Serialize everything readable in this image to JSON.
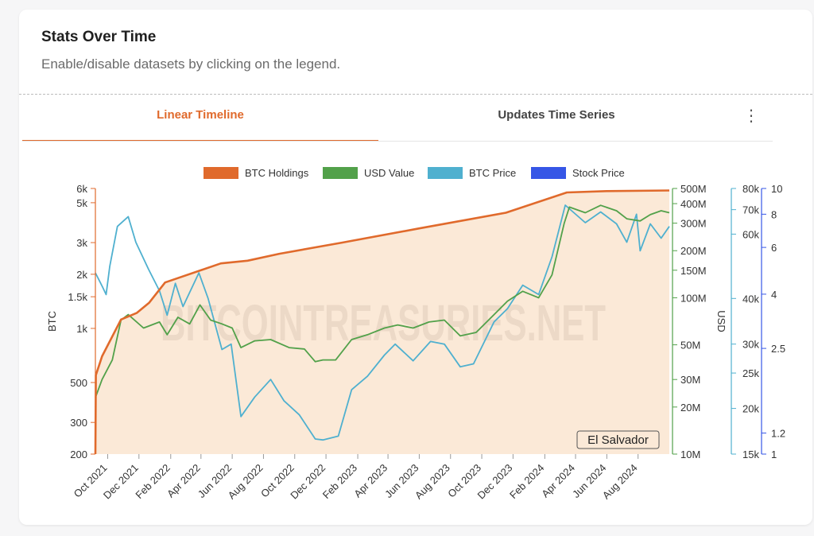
{
  "header": {
    "title": "Stats Over Time",
    "subtitle": "Enable/disable datasets by clicking on the legend."
  },
  "tabs": [
    {
      "label": "Linear Timeline",
      "active": true
    },
    {
      "label": "Updates Time Series",
      "active": false
    }
  ],
  "menu": {
    "icon": "kebab-menu-icon",
    "glyph": "⋮"
  },
  "watermark": "BITCOINTREASURIES.NET",
  "colors": {
    "btc_holdings": "#e06a2c",
    "holdings_fill": "#fbe9d7",
    "usd_value": "#52a14a",
    "btc_price": "#4fb0cf",
    "stock_price": "#3656e6",
    "accent": "#e06a2c"
  },
  "chart_data": {
    "type": "line",
    "legend_position": "top",
    "annotation": "El Salvador",
    "x_ticks": [
      "Oct 2021",
      "Dec 2021",
      "Feb 2022",
      "Apr 2022",
      "Jun 2022",
      "Aug 2022",
      "Oct 2022",
      "Dec 2022",
      "Feb 2023",
      "Apr 2023",
      "Jun 2023",
      "Aug 2023",
      "Oct 2023",
      "Dec 2023",
      "Feb 2024",
      "Apr 2024",
      "Jun 2024",
      "Aug 2024"
    ],
    "x_range": [
      "2021-09-07",
      "2024-10-01"
    ],
    "axes": {
      "btc": {
        "label": "BTC",
        "scale": "log",
        "range": [
          200,
          6000
        ],
        "ticks": [
          "6k",
          "5k",
          "3k",
          "2k",
          "1.5k",
          "1k",
          "500",
          "300",
          "200"
        ],
        "tick_values": [
          6000,
          5000,
          3000,
          2000,
          1500,
          1000,
          500,
          300,
          200
        ]
      },
      "usd": {
        "label": "USD",
        "scale": "log",
        "range": [
          10000000,
          500000000
        ],
        "ticks": [
          "500M",
          "400M",
          "300M",
          "200M",
          "150M",
          "100M",
          "50M",
          "30M",
          "20M",
          "10M"
        ],
        "tick_values": [
          500000000,
          400000000,
          300000000,
          200000000,
          150000000,
          100000000,
          50000000,
          30000000,
          20000000,
          10000000
        ]
      },
      "price": {
        "scale": "log",
        "range": [
          15000,
          80000
        ],
        "ticks": [
          "80k",
          "70k",
          "60k",
          "40k",
          "30k",
          "25k",
          "20k",
          "15k"
        ],
        "tick_values": [
          80000,
          70000,
          60000,
          40000,
          30000,
          25000,
          20000,
          15000
        ]
      },
      "stock": {
        "scale": "log",
        "range": [
          1,
          10
        ],
        "ticks": [
          "10",
          "8",
          "6",
          "4",
          "2.5",
          "1.2",
          "1"
        ],
        "tick_values": [
          10,
          8,
          6,
          4,
          2.5,
          1.2,
          1
        ]
      }
    },
    "series": [
      {
        "name": "BTC Holdings",
        "axis": "btc",
        "color": "#e06a2c",
        "fill": true,
        "points": [
          [
            "2021-09-07",
            200
          ],
          [
            "2021-09-08",
            550
          ],
          [
            "2021-09-20",
            700
          ],
          [
            "2021-10-27",
            1120
          ],
          [
            "2021-11-27",
            1220
          ],
          [
            "2021-12-21",
            1390
          ],
          [
            "2022-01-21",
            1800
          ],
          [
            "2022-05-10",
            2300
          ],
          [
            "2022-07-01",
            2380
          ],
          [
            "2022-09-01",
            2600
          ],
          [
            "2023-01-01",
            3000
          ],
          [
            "2023-06-01",
            3600
          ],
          [
            "2023-11-17",
            4400
          ],
          [
            "2024-03-15",
            5700
          ],
          [
            "2024-06-01",
            5800
          ],
          [
            "2024-10-01",
            5850
          ]
        ]
      },
      {
        "name": "USD Value",
        "axis": "usd",
        "color": "#52a14a",
        "fill": false,
        "points": [
          [
            "2021-09-07",
            23000000
          ],
          [
            "2021-09-20",
            30000000
          ],
          [
            "2021-10-10",
            40000000
          ],
          [
            "2021-10-27",
            72000000
          ],
          [
            "2021-11-10",
            78000000
          ],
          [
            "2021-12-10",
            64000000
          ],
          [
            "2022-01-10",
            70000000
          ],
          [
            "2022-01-25",
            58000000
          ],
          [
            "2022-02-15",
            75000000
          ],
          [
            "2022-03-10",
            68000000
          ],
          [
            "2022-03-30",
            90000000
          ],
          [
            "2022-04-20",
            72000000
          ],
          [
            "2022-05-12",
            68000000
          ],
          [
            "2022-06-01",
            64000000
          ],
          [
            "2022-06-18",
            48000000
          ],
          [
            "2022-07-15",
            53000000
          ],
          [
            "2022-08-15",
            54000000
          ],
          [
            "2022-09-20",
            48000000
          ],
          [
            "2022-10-20",
            47000000
          ],
          [
            "2022-11-10",
            39000000
          ],
          [
            "2022-11-25",
            40000000
          ],
          [
            "2022-12-20",
            40000000
          ],
          [
            "2023-01-20",
            54000000
          ],
          [
            "2023-02-20",
            58000000
          ],
          [
            "2023-03-25",
            64000000
          ],
          [
            "2023-04-20",
            67000000
          ],
          [
            "2023-05-20",
            64000000
          ],
          [
            "2023-06-20",
            70000000
          ],
          [
            "2023-07-20",
            72000000
          ],
          [
            "2023-08-20",
            57000000
          ],
          [
            "2023-09-20",
            60000000
          ],
          [
            "2023-10-25",
            78000000
          ],
          [
            "2023-11-20",
            95000000
          ],
          [
            "2023-12-20",
            110000000
          ],
          [
            "2024-01-20",
            100000000
          ],
          [
            "2024-02-15",
            140000000
          ],
          [
            "2024-03-10",
            300000000
          ],
          [
            "2024-03-20",
            380000000
          ],
          [
            "2024-04-20",
            350000000
          ],
          [
            "2024-05-20",
            390000000
          ],
          [
            "2024-06-20",
            360000000
          ],
          [
            "2024-07-10",
            320000000
          ],
          [
            "2024-08-05",
            310000000
          ],
          [
            "2024-08-25",
            340000000
          ],
          [
            "2024-09-15",
            360000000
          ],
          [
            "2024-10-01",
            350000000
          ]
        ]
      },
      {
        "name": "BTC Price",
        "axis": "price",
        "color": "#4fb0cf",
        "fill": false,
        "points": [
          [
            "2021-09-07",
            47000
          ],
          [
            "2021-09-21",
            43000
          ],
          [
            "2021-09-28",
            41000
          ],
          [
            "2021-10-05",
            49000
          ],
          [
            "2021-10-20",
            63000
          ],
          [
            "2021-11-10",
            67000
          ],
          [
            "2021-11-25",
            57000
          ],
          [
            "2021-12-20",
            48000
          ],
          [
            "2022-01-10",
            42000
          ],
          [
            "2022-01-25",
            36000
          ],
          [
            "2022-02-10",
            44000
          ],
          [
            "2022-02-25",
            38000
          ],
          [
            "2022-03-28",
            47000
          ],
          [
            "2022-04-15",
            40000
          ],
          [
            "2022-05-12",
            29000
          ],
          [
            "2022-05-30",
            30000
          ],
          [
            "2022-06-18",
            19000
          ],
          [
            "2022-07-15",
            21500
          ],
          [
            "2022-08-15",
            24000
          ],
          [
            "2022-09-10",
            21000
          ],
          [
            "2022-10-10",
            19200
          ],
          [
            "2022-11-10",
            16500
          ],
          [
            "2022-11-25",
            16400
          ],
          [
            "2022-12-25",
            16800
          ],
          [
            "2023-01-20",
            22500
          ],
          [
            "2023-02-20",
            24500
          ],
          [
            "2023-03-25",
            28000
          ],
          [
            "2023-04-15",
            30000
          ],
          [
            "2023-05-20",
            27000
          ],
          [
            "2023-06-23",
            30500
          ],
          [
            "2023-07-20",
            30000
          ],
          [
            "2023-08-20",
            26000
          ],
          [
            "2023-09-15",
            26500
          ],
          [
            "2023-10-25",
            34500
          ],
          [
            "2023-11-20",
            37500
          ],
          [
            "2023-12-20",
            43500
          ],
          [
            "2024-01-20",
            41000
          ],
          [
            "2024-02-15",
            52000
          ],
          [
            "2024-03-12",
            72000
          ],
          [
            "2024-04-20",
            64500
          ],
          [
            "2024-05-20",
            69000
          ],
          [
            "2024-06-20",
            64000
          ],
          [
            "2024-07-10",
            57000
          ],
          [
            "2024-07-29",
            68000
          ],
          [
            "2024-08-05",
            54000
          ],
          [
            "2024-08-25",
            64000
          ],
          [
            "2024-09-15",
            58500
          ],
          [
            "2024-10-01",
            63000
          ]
        ]
      },
      {
        "name": "Stock Price",
        "axis": "stock",
        "color": "#3656e6",
        "fill": false,
        "points": []
      }
    ]
  }
}
